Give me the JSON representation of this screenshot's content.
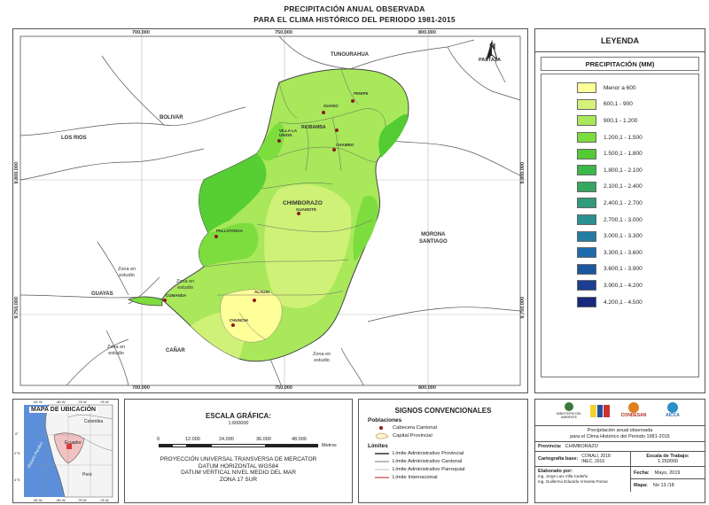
{
  "title": {
    "line1": "PRECIPITACIÓN ANUAL OBSERVADA",
    "line2": "PARA EL CLIMA HISTÓRICO DEL PERIODO 1981-2015"
  },
  "map": {
    "x_coords": [
      "700.000",
      "750.000",
      "800.000"
    ],
    "y_coords": [
      "9.800.000",
      "9.750.000"
    ],
    "north_label": "N",
    "neighbors": {
      "tungurahua": "TUNGURAHUA",
      "pastaza": "PASTAZA",
      "bolivar": "BOLIVAR",
      "los_rios": "LOS RIOS",
      "morona": "MORONA\nSANTIAGO",
      "guayas": "GUAYAS",
      "canar": "CAÑAR",
      "zona1": "Zona en\nestudio",
      "zona2": "Zona en\nestudio",
      "zona3": "Zona en\nestudio",
      "zona4": "Zona en\nestudio"
    },
    "province_label": "CHIMBORAZO",
    "towns": {
      "penipe": "PENIPE",
      "guano": "GUANO",
      "riobamba": "RIOBAMBA",
      "villa_la_union": "VILLA LA\nUNION",
      "chambo": "CHAMBO",
      "guamote": "GUAMOTE",
      "pallatanga": "PALLATANGA",
      "cumanda": "CUMANDA",
      "alausi": "ALAUSI",
      "chunchi": "CHUNCHI"
    }
  },
  "legend": {
    "heading": "LEYENDA",
    "subheading": "PRECIPITACIÓN (MM)",
    "classes": [
      {
        "label": "Menor a 600",
        "color": "#ffff99"
      },
      {
        "label": "600,1 - 900",
        "color": "#d4f27a"
      },
      {
        "label": "900,1 - 1.200",
        "color": "#a8e85a"
      },
      {
        "label": "1.200,1 - 1.500",
        "color": "#7ddc3e"
      },
      {
        "label": "1.500,1 - 1.800",
        "color": "#52cc32"
      },
      {
        "label": "1.800,1 - 2.100",
        "color": "#3cb84a"
      },
      {
        "label": "2.100,1 - 2.400",
        "color": "#34a860"
      },
      {
        "label": "2.400,1 - 2.700",
        "color": "#2f9c7a"
      },
      {
        "label": "2.700,1 - 3.000",
        "color": "#2a9090"
      },
      {
        "label": "3.000,1 - 3.300",
        "color": "#247ea2"
      },
      {
        "label": "3.300,1 - 3.600",
        "color": "#1f6aaa"
      },
      {
        "label": "3.600,1 - 3.900",
        "color": "#1c55a0"
      },
      {
        "label": "3.900,1 - 4.200",
        "color": "#1a3f92"
      },
      {
        "label": "4.200,1 - 4.500",
        "color": "#18287f"
      }
    ]
  },
  "inset": {
    "title": "MAPA DE UBICACIÓN",
    "colombia": "Colombia",
    "ecuador": "Ecuador",
    "peru": "Perú",
    "ocean": "Océano Pacífico",
    "x_ticks": [
      "-82 W",
      "-80 W",
      "-78 W",
      "-76 W"
    ],
    "y_ticks": [
      "0°",
      "2°S",
      "4°S"
    ]
  },
  "scale": {
    "title": "ESCALA GRÁFICA:",
    "ratio": "1:600000",
    "ticks": [
      "0",
      "12.000",
      "24.000",
      "36.000",
      "48.000"
    ],
    "unit": "Metros",
    "projection": [
      "PROYECCIÓN UNIVERSAL TRANSVERSA DE MERCATOR",
      "DATUM HORIZONTAL WGS84",
      "DATUM VERTICAL NIVEL MEDIO DEL MAR",
      "ZONA 17 SUR"
    ]
  },
  "signs": {
    "title": "SIGNOS CONVENCIONALES",
    "poblaciones": "Poblaciones",
    "cabecera": "Cabecera Cantonal",
    "capital": "Capital Provincial",
    "limites": "Límites",
    "lim_prov": "Límite Administrativo Provincial",
    "lim_cant": "Límite Administrativo Cantonal",
    "lim_parr": "Límite Administrativo Parroquial",
    "lim_int": "Límite Internacional"
  },
  "info": {
    "logo1": "MINISTERIO DEL AMBIENTE",
    "logo2": "CONDESAN",
    "logo3": "AICCA",
    "project_title1": "Precipitación anual observada",
    "project_title2": "para el Clima Histórico del Periodo 1981-2015",
    "provincia_label": "Provincia:",
    "provincia": "CHIMBORAZO",
    "carto_label": "Cartografía base:",
    "carto1": "CONALI, 2018",
    "carto2": "INEC, 2016",
    "escala_label": "Escala de Trabajo:",
    "escala": "1:250000",
    "elab_label": "Elaborado por:",
    "elab1": "Ing. Jorge Luis Villa Cedeño",
    "elab2": "Ing. Guillermo Eduardo Armenta Porras",
    "fecha_label": "Fecha:",
    "fecha": "Mayo, 2019",
    "mapa_label": "Mapa:",
    "mapa": "No 13 /18"
  }
}
